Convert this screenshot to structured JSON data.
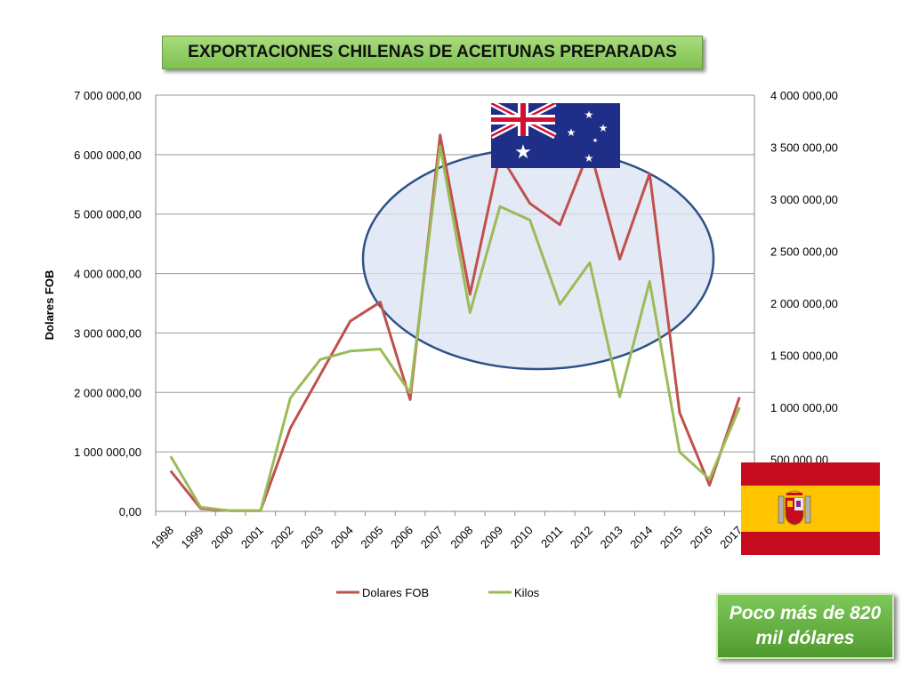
{
  "title": "EXPORTACIONES CHILENAS DE ACEITUNAS PREPARADAS",
  "note": {
    "line1": "Poco más de 820",
    "line2": "mil dólares"
  },
  "flags": [
    "australia-flag",
    "spain-flag"
  ],
  "colors": {
    "dolares": "#c0504d",
    "kilos": "#9bbb59",
    "ellipse_fill": "#dbe3f1",
    "ellipse_stroke": "#2e5189",
    "title_bg": "#8cc963",
    "note_bg": "#5aa936"
  },
  "chart_data": {
    "type": "line",
    "title": "EXPORTACIONES CHILENAS DE ACEITUNAS PREPARADAS",
    "x": [
      "1998",
      "1999",
      "2000",
      "2001",
      "2002",
      "2003",
      "2004",
      "2005",
      "2006",
      "2007",
      "2008",
      "2009",
      "2010",
      "2011",
      "2012",
      "2013",
      "2014",
      "2015",
      "2016",
      "2017"
    ],
    "ylabel": "Dolares FOB",
    "ylim": [
      0,
      7000000
    ],
    "y2lim": [
      0,
      4000000
    ],
    "y_ticks": [
      "0,00",
      "1 000 000,00",
      "2 000 000,00",
      "3 000 000,00",
      "4 000 000,00",
      "5 000 000,00",
      "6 000 000,00",
      "7 000 000,00"
    ],
    "y2_ticks": [
      "500 000,00",
      "1 000 000,00",
      "1 500 000,00",
      "2 000 000,00",
      "2 500 000,00",
      "3 000 000,00",
      "3 500 000,00",
      "4 000 000,00"
    ],
    "grid": true,
    "legend_position": "bottom",
    "series": [
      {
        "name": "Dolares FOB",
        "axis": "left",
        "color": "#c0504d",
        "values": [
          680000,
          50000,
          10000,
          10000,
          1400000,
          2300000,
          3200000,
          3520000,
          1880000,
          6330000,
          3650000,
          6000000,
          5180000,
          4820000,
          6100000,
          4240000,
          5680000,
          1660000,
          440000,
          1920000
        ]
      },
      {
        "name": "Kilos",
        "axis": "right",
        "color": "#9bbb59",
        "values": [
          530000,
          40000,
          5000,
          5000,
          1090000,
          1460000,
          1540000,
          1560000,
          1140000,
          3510000,
          1910000,
          2930000,
          2800000,
          1990000,
          2390000,
          1100000,
          2210000,
          570000,
          310000,
          1000000
        ]
      }
    ]
  }
}
